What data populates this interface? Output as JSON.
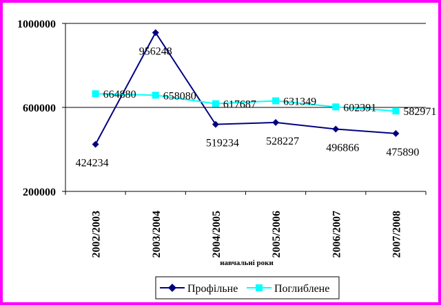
{
  "chart_data": {
    "type": "line",
    "categories": [
      "2002/2003",
      "2003/2004",
      "2004/2005",
      "2005/2006",
      "2006/2007",
      "2007/2008"
    ],
    "series": [
      {
        "name": "Профільне",
        "values": [
          424234,
          956248,
          519234,
          528227,
          496866,
          475890
        ],
        "color": "#000080",
        "marker": "diamond"
      },
      {
        "name": "Поглиблене",
        "values": [
          664880,
          658080,
          617687,
          631349,
          602391,
          582971
        ],
        "color": "#00ffff",
        "marker": "square"
      }
    ],
    "xlabel": "навчальні роки",
    "ylabel": "",
    "ylim": [
      200000,
      1000000
    ],
    "yticks": [
      "200000",
      "600000",
      "1000000"
    ],
    "legend": "bottom",
    "grid": true
  },
  "colors": {
    "border": "#ff00ff",
    "background": "#ffffff"
  }
}
